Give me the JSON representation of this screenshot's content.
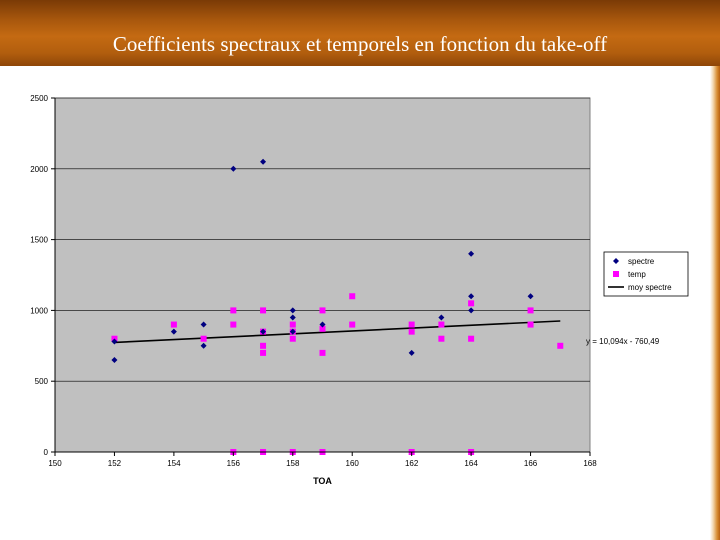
{
  "slide": {
    "title": "Coefficients spectraux et temporels en fonction du take-off"
  },
  "colors": {
    "banner": "#b25e0e",
    "plot_background": "#c0c0c0",
    "spectre": "#000080",
    "temp": "#ff00ff",
    "trendline": "#000000"
  },
  "chart_data": {
    "type": "scatter",
    "title": "",
    "xlabel": "TOA",
    "ylabel": "",
    "xlim": [
      150,
      168
    ],
    "ylim": [
      0,
      2500
    ],
    "xticks": [
      150,
      152,
      154,
      156,
      158,
      160,
      162,
      164,
      166,
      168
    ],
    "yticks": [
      0,
      500,
      1000,
      1500,
      2000,
      2500
    ],
    "grid": "horizontal",
    "legend_position": "right",
    "series": [
      {
        "name": "spectre",
        "marker": "diamond",
        "color": "#000080",
        "points": [
          [
            152,
            650
          ],
          [
            152,
            780
          ],
          [
            154,
            850
          ],
          [
            155,
            900
          ],
          [
            155,
            750
          ],
          [
            156,
            2000
          ],
          [
            157,
            2050
          ],
          [
            157,
            850
          ],
          [
            158,
            1000
          ],
          [
            158,
            950
          ],
          [
            158,
            850
          ],
          [
            159,
            900
          ],
          [
            162,
            700
          ],
          [
            163,
            950
          ],
          [
            164,
            1400
          ],
          [
            164,
            1100
          ],
          [
            164,
            1000
          ],
          [
            166,
            1100
          ]
        ]
      },
      {
        "name": "temp",
        "marker": "square",
        "color": "#ff00ff",
        "points": [
          [
            152,
            800
          ],
          [
            154,
            900
          ],
          [
            155,
            800
          ],
          [
            156,
            1000
          ],
          [
            156,
            900
          ],
          [
            156,
            0
          ],
          [
            157,
            1000
          ],
          [
            157,
            850
          ],
          [
            157,
            750
          ],
          [
            157,
            700
          ],
          [
            157,
            0
          ],
          [
            158,
            900
          ],
          [
            158,
            850
          ],
          [
            158,
            800
          ],
          [
            158,
            0
          ],
          [
            159,
            1000
          ],
          [
            159,
            870
          ],
          [
            159,
            700
          ],
          [
            159,
            0
          ],
          [
            160,
            1100
          ],
          [
            160,
            900
          ],
          [
            162,
            900
          ],
          [
            162,
            850
          ],
          [
            162,
            0
          ],
          [
            163,
            900
          ],
          [
            163,
            800
          ],
          [
            164,
            1050
          ],
          [
            164,
            800
          ],
          [
            164,
            0
          ],
          [
            166,
            1000
          ],
          [
            166,
            900
          ],
          [
            167,
            750
          ]
        ]
      },
      {
        "name": "moy spectre",
        "type": "line",
        "color": "#000000",
        "slope": 10.094,
        "intercept": -760.49,
        "x_range": [
          152,
          167
        ]
      }
    ],
    "annotations": [
      {
        "text": "y = 10,094x - 760,49"
      }
    ]
  }
}
